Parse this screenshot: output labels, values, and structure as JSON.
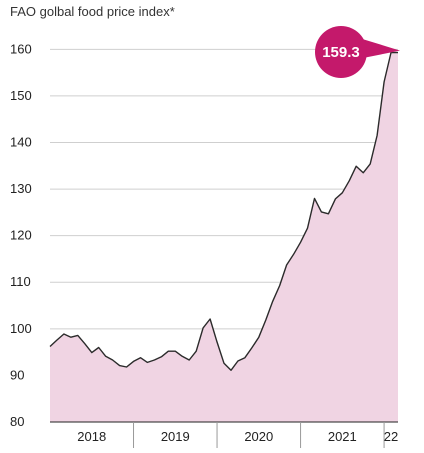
{
  "chart_data": {
    "type": "area",
    "title": "FAO golbal food price index*",
    "xlabel": "",
    "ylabel": "",
    "ylim": [
      80,
      162
    ],
    "yticks": [
      80,
      90,
      100,
      110,
      120,
      130,
      140,
      150,
      160
    ],
    "x_period_labels": [
      "2018",
      "2019",
      "2020",
      "2021",
      "22"
    ],
    "x_range": [
      "2018-01",
      "2022-03"
    ],
    "grid": "horizontal",
    "colors": {
      "line": "#2b2b2b",
      "fill": "#f0d4e3",
      "grid": "#cfcfcf",
      "callout": "#c4196b"
    },
    "callout": {
      "label": "159.3",
      "x": "2022-03",
      "y": 159.3
    },
    "series": [
      {
        "x": [
          "2018-01",
          "2018-02",
          "2018-03",
          "2018-04",
          "2018-05",
          "2018-06",
          "2018-07",
          "2018-08",
          "2018-09",
          "2018-10",
          "2018-11",
          "2018-12",
          "2019-01",
          "2019-02",
          "2019-03",
          "2019-04",
          "2019-05",
          "2019-06",
          "2019-07",
          "2019-08",
          "2019-09",
          "2019-10",
          "2019-11",
          "2019-12",
          "2020-01",
          "2020-02",
          "2020-03",
          "2020-04",
          "2020-05",
          "2020-06",
          "2020-07",
          "2020-08",
          "2020-09",
          "2020-10",
          "2020-11",
          "2020-12",
          "2021-01",
          "2021-02",
          "2021-03",
          "2021-04",
          "2021-05",
          "2021-06",
          "2021-07",
          "2021-08",
          "2021-09",
          "2021-10",
          "2021-11",
          "2021-12",
          "2022-01",
          "2022-02",
          "2022-03"
        ],
        "values": [
          96.2,
          97.6,
          98.9,
          98.2,
          98.6,
          96.8,
          94.9,
          96.0,
          94.1,
          93.3,
          92.1,
          91.8,
          93.0,
          93.8,
          92.8,
          93.3,
          94.0,
          95.2,
          95.2,
          94.1,
          93.3,
          95.2,
          100.2,
          102.1,
          97.2,
          92.6,
          91.1,
          93.1,
          93.8,
          95.9,
          98.2,
          101.9,
          105.9,
          109.3,
          113.7,
          116.0,
          118.6,
          121.6,
          128.0,
          125.1,
          124.7,
          127.9,
          129.2,
          131.8,
          134.9,
          133.5,
          135.4,
          141.5,
          153.0,
          159.3,
          159.3
        ]
      }
    ]
  }
}
